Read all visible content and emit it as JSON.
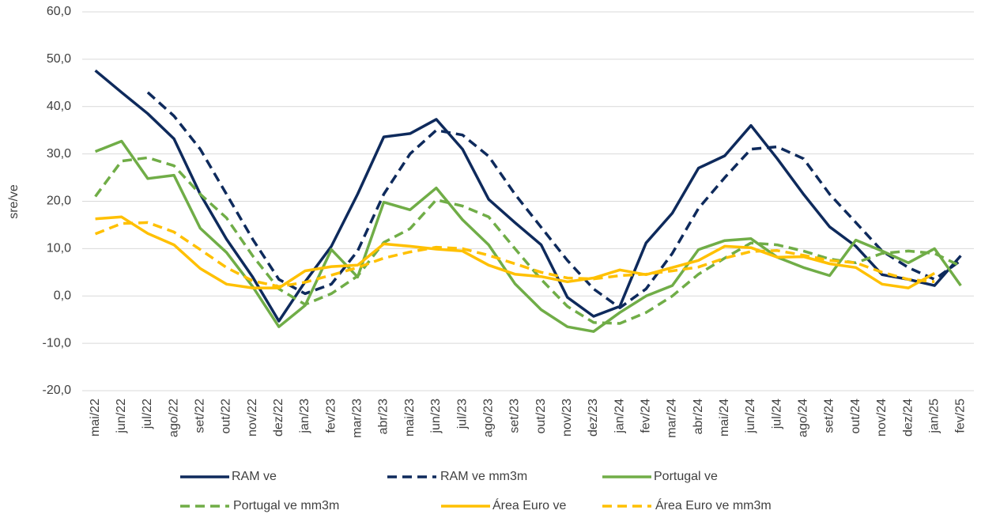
{
  "chart_data": {
    "type": "line",
    "y_label": "sre/ve",
    "categories": [
      "mai/22",
      "jun/22",
      "jul/22",
      "ago/22",
      "set/22",
      "out/22",
      "nov/22",
      "dez/22",
      "jan/23",
      "fev/23",
      "mar/23",
      "abr/23",
      "mai/23",
      "jun/23",
      "jul/23",
      "ago/23",
      "set/23",
      "out/23",
      "nov/23",
      "dez/23",
      "jan/24",
      "fev/24",
      "mar/24",
      "abr/24",
      "mai/24",
      "jun/24",
      "jul/24",
      "ago/24",
      "set/24",
      "out/24",
      "nov/24",
      "dez/24",
      "jan/25",
      "fev/25"
    ],
    "series": [
      {
        "name": "RAM ve",
        "color": "#0e2a5c",
        "dash": false,
        "values": [
          47.6,
          43,
          38.5,
          33.2,
          21.5,
          12,
          4,
          -5.3,
          3,
          10.5,
          21.5,
          33.6,
          34.3,
          37.3,
          31,
          20.4,
          15.5,
          10.8,
          -0.3,
          -4.3,
          -2.2,
          11.2,
          17.5,
          27,
          29.6,
          36,
          29,
          21.5,
          14.6,
          10.5,
          4.5,
          3.5,
          2.2,
          8.5
        ]
      },
      {
        "name": "RAM ve mm3m",
        "color": "#0e2a5c",
        "dash": true,
        "values": [
          null,
          null,
          43,
          38,
          31,
          21.5,
          12,
          3.5,
          0.5,
          2.5,
          9.5,
          21.5,
          30,
          35,
          34,
          29.5,
          21.5,
          14.5,
          7.5,
          1.5,
          -2.5,
          1.5,
          9,
          18.5,
          25,
          31,
          31.5,
          29,
          21.5,
          15.5,
          9.5,
          6,
          3.5,
          7.5
        ]
      },
      {
        "name": "Portugal ve",
        "color": "#70ad47",
        "dash": false,
        "values": [
          30.5,
          32.7,
          24.8,
          25.5,
          14.3,
          9.2,
          2,
          -6.5,
          -2,
          9.8,
          4,
          19.8,
          18.2,
          22.8,
          16.1,
          10.8,
          2.6,
          -2.9,
          -6.5,
          -7.5,
          -3.5,
          0,
          2.2,
          9.8,
          11.7,
          12.1,
          8.2,
          6,
          4.3,
          11.8,
          9.5,
          7,
          10,
          2.2
        ]
      },
      {
        "name": "Portugal ve mm3m",
        "color": "#70ad47",
        "dash": true,
        "values": [
          21,
          28.5,
          29.2,
          27.5,
          21.5,
          16.5,
          8.5,
          1.5,
          -1.8,
          0.5,
          4.2,
          11.3,
          14.2,
          20.3,
          19,
          16.7,
          10,
          3.5,
          -2.2,
          -5.6,
          -5.8,
          -3.5,
          0,
          4.6,
          8,
          11.2,
          10.8,
          9.5,
          7.8,
          7,
          9,
          9.5,
          9,
          6.3
        ]
      },
      {
        "name": "Área Euro ve",
        "color": "#ffc000",
        "dash": false,
        "values": [
          16.3,
          16.7,
          13.2,
          10.8,
          5.8,
          2.5,
          1.7,
          1.7,
          5.3,
          6.2,
          6.5,
          11,
          10.5,
          9.9,
          9.5,
          6.5,
          4.6,
          4.1,
          3,
          3.8,
          5.5,
          4.5,
          6,
          7.5,
          10.5,
          10.2,
          8.2,
          8.3,
          6.8,
          6,
          2.5,
          1.7,
          4.8,
          null
        ]
      },
      {
        "name": "Área Euro ve mm3m",
        "color": "#ffc000",
        "dash": true,
        "values": [
          13.1,
          15.3,
          15.5,
          13.5,
          9.8,
          6,
          3.2,
          2,
          2.9,
          4.4,
          6,
          8,
          9.3,
          10.3,
          10,
          8.6,
          6.8,
          5,
          3.8,
          3.6,
          4.3,
          4.6,
          5.3,
          6.1,
          8,
          9.4,
          9.6,
          8.6,
          7.5,
          7,
          5,
          3.5,
          3,
          null
        ]
      }
    ],
    "ylim": [
      -20,
      60
    ],
    "yticks": [
      {
        "value": -20,
        "label": "-20,0"
      },
      {
        "value": -10,
        "label": "-10,0"
      },
      {
        "value": 0,
        "label": "0,0"
      },
      {
        "value": 10,
        "label": "10,0"
      },
      {
        "value": 20,
        "label": "20,0"
      },
      {
        "value": 30,
        "label": "30,0"
      },
      {
        "value": 40,
        "label": "40,0"
      },
      {
        "value": 50,
        "label": "50,0"
      },
      {
        "value": 60,
        "label": "60,0"
      }
    ],
    "grid": true,
    "legend": "bottom"
  }
}
